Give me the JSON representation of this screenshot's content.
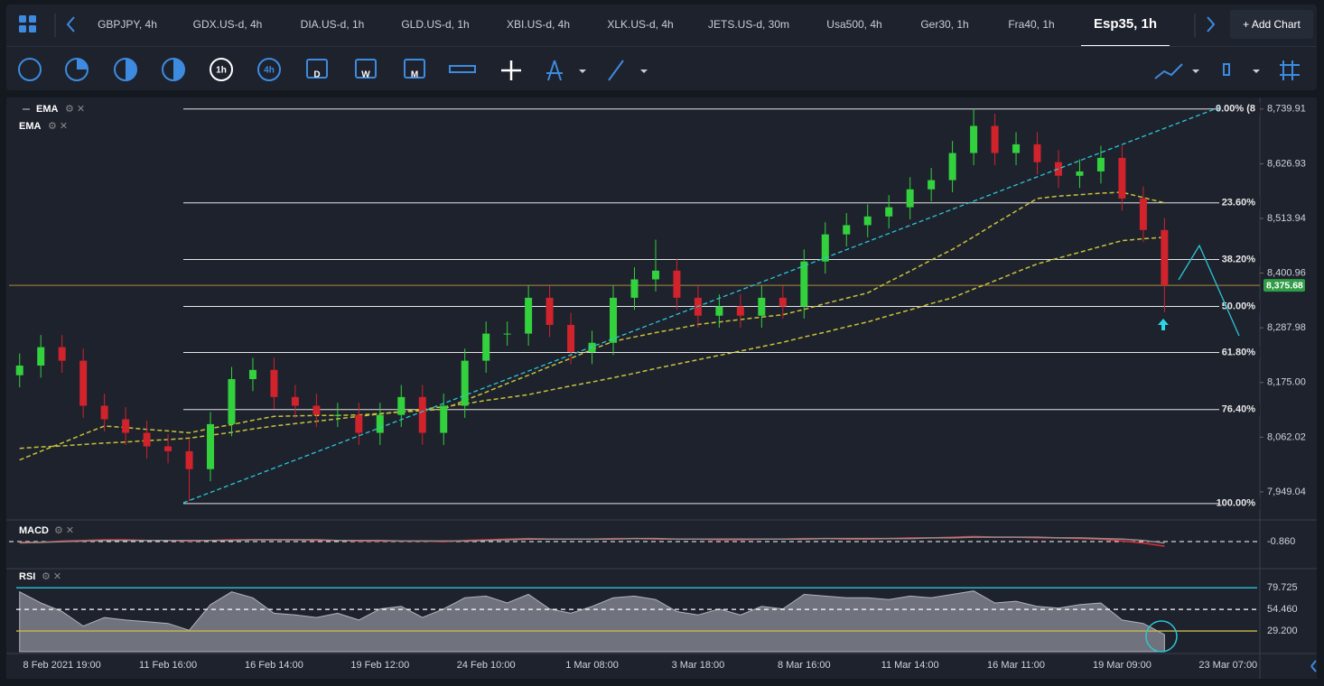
{
  "tabs": [
    "GBPJPY, 4h",
    "GDX.US-d, 4h",
    "DIA.US-d, 1h",
    "GLD.US-d, 1h",
    "XBI.US-d, 4h",
    "XLK.US-d, 4h",
    "JETS.US-d, 30m",
    "Usa500, 4h",
    "Ger30, 1h",
    "Fra40, 1h",
    "Esp35, 1h"
  ],
  "active_tab": 10,
  "add_chart": "Add Chart",
  "toolbar": {
    "timeframes": [
      "1h",
      "4h",
      "D",
      "W",
      "M"
    ]
  },
  "chart_data": [
    {
      "type": "candlestick",
      "categories": [
        null,
        null,
        "8 Feb 2021 19:00",
        null,
        null,
        null,
        null,
        "11 Feb 16:00",
        null,
        null,
        null,
        null,
        "16 Feb 14:00",
        null,
        null,
        null,
        null,
        "19 Feb 12:00",
        null,
        null,
        null,
        null,
        "24 Feb 10:00",
        null,
        null,
        null,
        null,
        "1 Mar 08:00",
        null,
        null,
        null,
        null,
        "3 Mar 18:00",
        null,
        null,
        null,
        null,
        "8 Mar 16:00",
        null,
        null,
        null,
        null,
        "11 Mar 14:00",
        null,
        null,
        null,
        null,
        "16 Mar 11:00",
        null,
        null,
        null,
        null,
        "19 Mar 09:00",
        null,
        null,
        null,
        null,
        "23 Mar 07:00",
        null
      ],
      "open": [
        8190,
        8210,
        8248,
        8220,
        8127,
        8099,
        8071,
        8043,
        8033,
        7996,
        8089,
        8182,
        8201,
        8145,
        8127,
        8108,
        8108,
        8071,
        8108,
        8145,
        8071,
        8127,
        8220,
        8276,
        8276,
        8350,
        8294,
        8238,
        8257,
        8350,
        8388,
        8406,
        8350,
        8313,
        8332,
        8313,
        8350,
        8332,
        8425,
        8481,
        8500,
        8518,
        8537,
        8574,
        8593,
        8649,
        8705,
        8649,
        8667,
        8630,
        8602,
        8611,
        8639,
        8555,
        8490,
        null,
        null,
        null,
        null
      ],
      "high": [
        8235,
        8273,
        8273,
        8245,
        8152,
        8124,
        8096,
        8068,
        8058,
        8114,
        8207,
        8226,
        8226,
        8170,
        8152,
        8133,
        8133,
        8133,
        8170,
        8170,
        8152,
        8245,
        8301,
        8301,
        8375,
        8375,
        8319,
        8282,
        8375,
        8413,
        8470,
        8431,
        8375,
        8357,
        8357,
        8375,
        8375,
        8450,
        8506,
        8525,
        8543,
        8562,
        8599,
        8618,
        8674,
        8740,
        8730,
        8692,
        8692,
        8655,
        8636,
        8664,
        8664,
        8580,
        8515,
        null,
        null,
        null,
        null
      ],
      "low": [
        8165,
        8185,
        8195,
        8102,
        8074,
        8046,
        8018,
        8008,
        7930,
        7971,
        8064,
        8157,
        8120,
        8102,
        8083,
        8083,
        8046,
        8046,
        8083,
        8046,
        8046,
        8102,
        8195,
        8251,
        8251,
        8269,
        8213,
        8213,
        8232,
        8325,
        8363,
        8325,
        8288,
        8288,
        8288,
        8288,
        8307,
        8307,
        8400,
        8456,
        8475,
        8493,
        8512,
        8549,
        8568,
        8624,
        8624,
        8624,
        8605,
        8577,
        8577,
        8586,
        8530,
        8465,
        8320,
        null,
        null,
        null,
        null
      ],
      "close": [
        8210,
        8248,
        8220,
        8127,
        8099,
        8071,
        8043,
        8033,
        7996,
        8089,
        8182,
        8201,
        8145,
        8127,
        8108,
        8108,
        8071,
        8108,
        8145,
        8071,
        8127,
        8220,
        8276,
        8276,
        8350,
        8294,
        8238,
        8257,
        8350,
        8388,
        8406,
        8350,
        8313,
        8332,
        8313,
        8350,
        8332,
        8425,
        8481,
        8500,
        8518,
        8537,
        8574,
        8593,
        8649,
        8705,
        8649,
        8667,
        8630,
        8602,
        8611,
        8639,
        8555,
        8490,
        8375.68,
        null,
        null,
        null,
        null
      ],
      "up_color": "#33d13d",
      "down_color": "#d0232c",
      "overlays": [
        {
          "name": "EMA",
          "color": "#c8c23a",
          "values": [
            8015,
            8033,
            8050,
            8068,
            8085,
            8082,
            8078,
            8075,
            8071,
            8080,
            8088,
            8097,
            8105,
            8106,
            8107,
            8107,
            8108,
            8111,
            8114,
            8117,
            8120,
            8138,
            8155,
            8173,
            8190,
            8208,
            8225,
            8243,
            8260,
            8269,
            8278,
            8286,
            8295,
            8300,
            8305,
            8310,
            8315,
            8326,
            8338,
            8349,
            8360,
            8383,
            8405,
            8428,
            8450,
            8476,
            8503,
            8529,
            8555,
            8560,
            8563,
            8566,
            8568,
            8557,
            8546,
            null,
            null,
            null,
            null
          ]
        },
        {
          "name": "EMA",
          "color": "#c8c23a",
          "values": [
            8039,
            8042,
            8044,
            8047,
            8050,
            8052,
            8055,
            8057,
            8060,
            8066,
            8072,
            8079,
            8085,
            8090,
            8095,
            8100,
            8105,
            8110,
            8115,
            8120,
            8125,
            8131,
            8138,
            8144,
            8150,
            8159,
            8168,
            8176,
            8185,
            8194,
            8204,
            8213,
            8222,
            8231,
            8240,
            8249,
            8258,
            8269,
            8279,
            8290,
            8300,
            8313,
            8325,
            8338,
            8350,
            8368,
            8385,
            8403,
            8420,
            8432,
            8444,
            8456,
            8468,
            8472,
            8475,
            null,
            null,
            null,
            null
          ]
        }
      ],
      "ylim": [
        7893,
        8760
      ],
      "yticks": [
        {
          "value": 8739.91,
          "label": "8,739.91"
        },
        {
          "value": 8626.93,
          "label": "8,626.93"
        },
        {
          "value": 8513.94,
          "label": "8,513.94"
        },
        {
          "value": 8400.96,
          "label": "8,400.96"
        },
        {
          "value": 8287.98,
          "label": "8,287.98"
        },
        {
          "value": 8175,
          "label": "8,175.00"
        },
        {
          "value": 8062.02,
          "label": "8,062.02"
        },
        {
          "value": 7949.04,
          "label": "7,949.04"
        }
      ],
      "fib_levels": [
        {
          "value": 8739.91,
          "label": "0.00% (8"
        },
        {
          "value": 8546,
          "label": "23.60%"
        },
        {
          "value": 8429,
          "label": "38.20%"
        },
        {
          "value": 8332,
          "label": "50.00%"
        },
        {
          "value": 8237,
          "label": "61.80%"
        },
        {
          "value": 8119,
          "label": "76.40%"
        },
        {
          "value": 7925,
          "label": "100.00%"
        }
      ],
      "last_price": {
        "value": 8375.68,
        "label": "8,375.68"
      }
    },
    {
      "type": "line",
      "title": "MACD",
      "series": [
        {
          "color": "#d6333b",
          "values": [
            -3,
            -2,
            0,
            1,
            2,
            2,
            1,
            1,
            0,
            1,
            2,
            2,
            2,
            2,
            1,
            1,
            0,
            0,
            0,
            0,
            -1,
            1,
            2,
            3,
            4,
            3,
            3,
            3,
            4,
            4,
            3,
            3,
            3,
            2,
            2,
            3,
            3,
            4,
            4,
            3,
            3,
            4,
            5,
            5,
            6,
            7,
            6,
            6,
            5,
            5,
            4,
            3,
            0,
            -3,
            -8,
            null,
            null,
            null,
            null
          ]
        },
        {
          "color": "#9a8a8a",
          "values": [
            -2,
            -2,
            -1,
            0,
            1,
            1,
            1,
            1,
            1,
            1,
            1,
            2,
            2,
            2,
            2,
            1,
            1,
            1,
            0,
            0,
            0,
            0,
            1,
            2,
            3,
            3,
            3,
            3,
            3,
            4,
            4,
            3,
            3,
            3,
            3,
            3,
            3,
            3,
            4,
            4,
            4,
            4,
            4,
            5,
            5,
            6,
            6,
            6,
            6,
            5,
            5,
            4,
            3,
            1,
            -3,
            null,
            null,
            null,
            null
          ]
        }
      ],
      "ylim": [
        -40,
        30
      ],
      "yticks": [
        {
          "value": -0.86,
          "label": "-0.860"
        }
      ]
    },
    {
      "type": "area",
      "title": "RSI",
      "color": "#8c8f98",
      "values": [
        75,
        62,
        52,
        35,
        45,
        42,
        40,
        38,
        30,
        60,
        75,
        68,
        50,
        48,
        45,
        50,
        42,
        55,
        58,
        45,
        55,
        68,
        70,
        62,
        72,
        55,
        50,
        58,
        68,
        70,
        66,
        52,
        48,
        55,
        48,
        58,
        55,
        72,
        70,
        68,
        68,
        66,
        70,
        68,
        72,
        76,
        62,
        64,
        58,
        56,
        60,
        62,
        42,
        38,
        25,
        null,
        null,
        null,
        null
      ],
      "ylim": [
        5,
        100
      ],
      "yticks": [
        79.725,
        {
          "value": 54.46,
          "label": "54.460"
        },
        {
          "value": 29.2,
          "label": "29.200"
        }
      ],
      "grid_colors": [
        "#2bc6d6",
        "#ffffff",
        "#c9b84a"
      ]
    }
  ]
}
